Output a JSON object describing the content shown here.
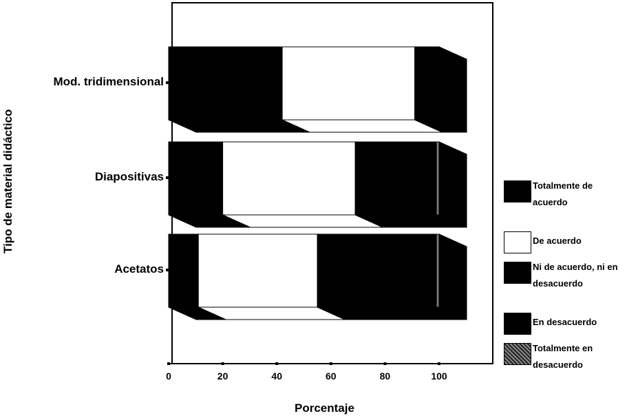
{
  "chart_data": {
    "type": "bar",
    "orientation": "horizontal-stacked-3d",
    "xlabel": "Porcentaje",
    "ylabel": "Tipo de material didáctico",
    "xlim": [
      0,
      110
    ],
    "x_ticks": [
      "0",
      "20",
      "40",
      "60",
      "80",
      "100"
    ],
    "categories": [
      "Mod. tridimensional",
      "Diapositivas",
      "Acetatos"
    ],
    "series": [
      {
        "name": "Totalmente de acuerdo",
        "color": "#000000",
        "values": [
          42,
          20,
          11
        ]
      },
      {
        "name": "De acuerdo",
        "color": "#ffffff",
        "values": [
          49,
          49,
          44
        ]
      },
      {
        "name": "Ni de acuerdo, ni en desacuerdo",
        "color": "#000000",
        "values": [
          9,
          30,
          44
        ]
      },
      {
        "name": "En desacuerdo",
        "color": "#000000",
        "values": [
          0,
          0,
          0
        ]
      },
      {
        "name": "Totalmente en desacuerdo",
        "color": "#777777",
        "values": [
          0,
          1,
          1
        ]
      }
    ],
    "legend_position": "right",
    "grid": false
  }
}
